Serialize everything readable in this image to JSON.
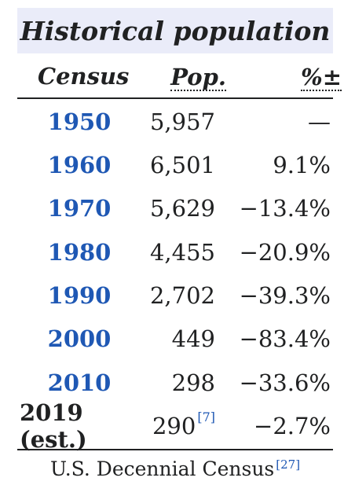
{
  "table": {
    "title": "Historical population",
    "headers": {
      "census": "Census",
      "population": "Pop.",
      "change": "%±"
    },
    "rows": [
      {
        "year": "1950",
        "population": "5,957",
        "change": "—"
      },
      {
        "year": "1960",
        "population": "6,501",
        "change": "9.1%"
      },
      {
        "year": "1970",
        "population": "5,629",
        "change": "−13.4%"
      },
      {
        "year": "1980",
        "population": "4,455",
        "change": "−20.9%"
      },
      {
        "year": "1990",
        "population": "2,702",
        "change": "−39.3%"
      },
      {
        "year": "2000",
        "population": "449",
        "change": "−83.4%"
      },
      {
        "year": "2010",
        "population": "298",
        "change": "−33.6%"
      },
      {
        "year": "2019 (est.)",
        "population": "290",
        "population_ref": "[7]",
        "change": "−2.7%"
      }
    ],
    "footer": {
      "text": "U.S. Decennial Census",
      "ref": "[27]"
    },
    "colors": {
      "title_bg": "#eaecf9",
      "link": "#1f58b4",
      "text": "#202122"
    }
  }
}
